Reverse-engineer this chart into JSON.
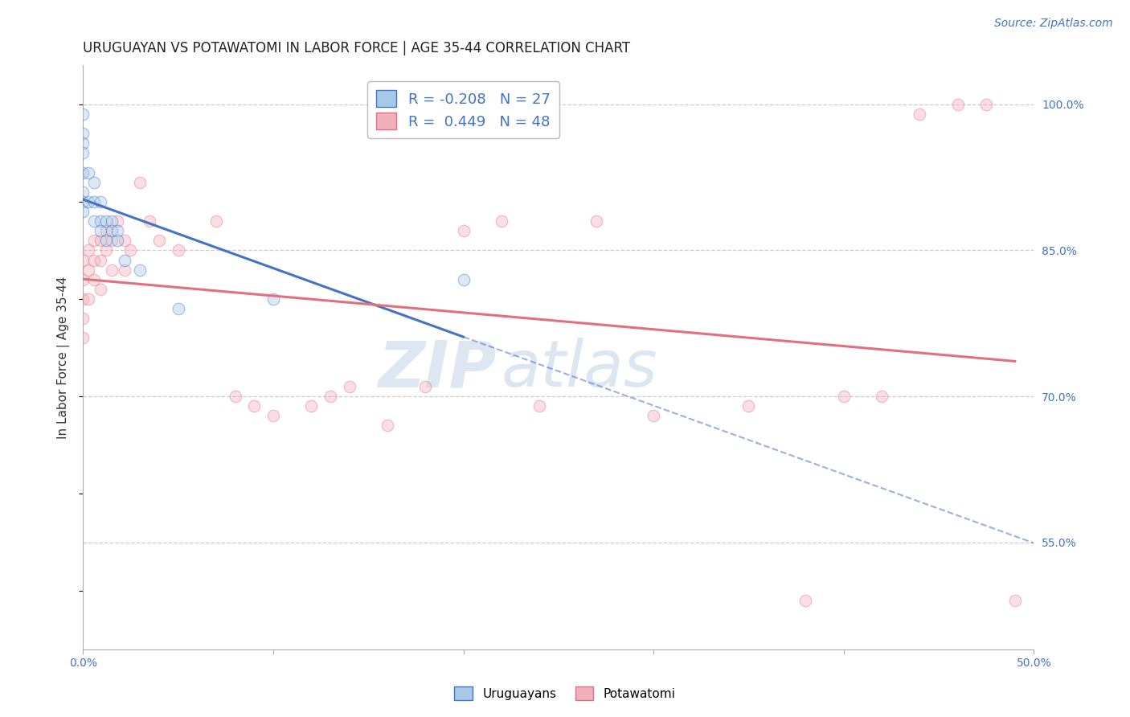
{
  "title": "URUGUAYAN VS POTAWATOMI IN LABOR FORCE | AGE 35-44 CORRELATION CHART",
  "source": "Source: ZipAtlas.com",
  "ylabel": "In Labor Force | Age 35-44",
  "xlim": [
    0.0,
    0.5
  ],
  "ylim": [
    0.44,
    1.04
  ],
  "xticks": [
    0.0,
    0.1,
    0.2,
    0.3,
    0.4,
    0.5
  ],
  "xticklabels": [
    "0.0%",
    "",
    "",
    "",
    "",
    "50.0%"
  ],
  "yticks_right": [
    0.55,
    0.7,
    0.85,
    1.0
  ],
  "yticklabels_right": [
    "55.0%",
    "70.0%",
    "85.0%",
    "100.0%"
  ],
  "grid_yticks": [
    0.55,
    0.7,
    0.85,
    1.0
  ],
  "uruguayans_x": [
    0.0,
    0.0,
    0.0,
    0.0,
    0.0,
    0.0,
    0.0,
    0.0,
    0.003,
    0.003,
    0.006,
    0.006,
    0.006,
    0.009,
    0.009,
    0.009,
    0.012,
    0.012,
    0.015,
    0.015,
    0.018,
    0.018,
    0.022,
    0.03,
    0.05,
    0.1,
    0.2
  ],
  "uruguayans_y": [
    0.99,
    0.97,
    0.96,
    0.95,
    0.93,
    0.91,
    0.9,
    0.89,
    0.93,
    0.9,
    0.92,
    0.9,
    0.88,
    0.9,
    0.88,
    0.87,
    0.88,
    0.86,
    0.88,
    0.87,
    0.87,
    0.86,
    0.84,
    0.83,
    0.79,
    0.8,
    0.82
  ],
  "potawatomi_x": [
    0.0,
    0.0,
    0.0,
    0.0,
    0.0,
    0.003,
    0.003,
    0.003,
    0.006,
    0.006,
    0.006,
    0.009,
    0.009,
    0.009,
    0.012,
    0.012,
    0.015,
    0.015,
    0.018,
    0.022,
    0.022,
    0.025,
    0.03,
    0.035,
    0.04,
    0.05,
    0.07,
    0.08,
    0.09,
    0.1,
    0.12,
    0.13,
    0.14,
    0.16,
    0.18,
    0.2,
    0.22,
    0.24,
    0.27,
    0.3,
    0.35,
    0.38,
    0.4,
    0.42,
    0.44,
    0.46,
    0.475,
    0.49
  ],
  "potawatomi_y": [
    0.84,
    0.82,
    0.8,
    0.78,
    0.76,
    0.85,
    0.83,
    0.8,
    0.86,
    0.84,
    0.82,
    0.86,
    0.84,
    0.81,
    0.87,
    0.85,
    0.86,
    0.83,
    0.88,
    0.86,
    0.83,
    0.85,
    0.92,
    0.88,
    0.86,
    0.85,
    0.88,
    0.7,
    0.69,
    0.68,
    0.69,
    0.7,
    0.71,
    0.67,
    0.71,
    0.87,
    0.88,
    0.69,
    0.88,
    0.68,
    0.69,
    0.49,
    0.7,
    0.7,
    0.99,
    1.0,
    1.0,
    0.49
  ],
  "uruguayan_color": "#a8c8e8",
  "potawatomi_color": "#f0b0bc",
  "uruguayan_line_color": "#4472c4",
  "potawatomi_line_color": "#e07080",
  "legend_R_uruguayan": "-0.208",
  "legend_N_uruguayan": "27",
  "legend_R_potawatomi": "0.449",
  "legend_N_potawatomi": "48",
  "watermark_text": "ZIP",
  "watermark_text2": "atlas",
  "legend_label_uruguayan": "Uruguayans",
  "legend_label_potawatomi": "Potawatomi",
  "title_fontsize": 12,
  "axis_label_fontsize": 11,
  "tick_fontsize": 10,
  "legend_fontsize": 13,
  "source_fontsize": 10,
  "marker_size": 110,
  "marker_alpha": 0.4,
  "line_width": 2.2,
  "background_color": "#ffffff"
}
